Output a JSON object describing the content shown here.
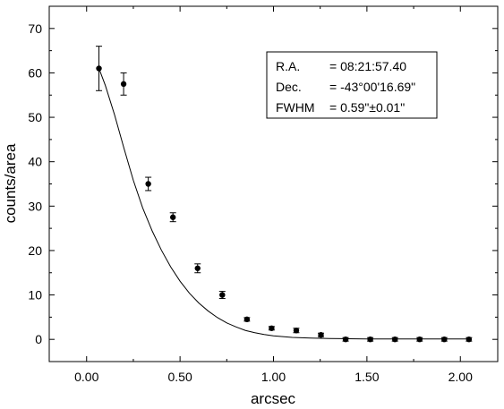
{
  "chart_data": {
    "type": "scatter",
    "title": "",
    "xlabel": "arcsec",
    "ylabel": "counts/area",
    "xlim": [
      -0.2,
      2.2
    ],
    "ylim": [
      -5,
      75
    ],
    "xticks": [
      0.0,
      0.5,
      1.0,
      1.5,
      2.0
    ],
    "xtick_labels": [
      "0.00",
      "0.50",
      "1.00",
      "1.50",
      "2.00"
    ],
    "yticks": [
      0,
      10,
      20,
      30,
      40,
      50,
      60,
      70
    ],
    "ytick_labels": [
      "0",
      "10",
      "20",
      "30",
      "40",
      "50",
      "60",
      "70"
    ],
    "grid": false,
    "legend": "none",
    "series": [
      {
        "kind": "points_with_error_bars",
        "x": [
          0.066,
          0.198,
          0.33,
          0.462,
          0.594,
          0.726,
          0.858,
          0.99,
          1.122,
          1.254,
          1.386,
          1.518,
          1.65,
          1.782,
          1.914,
          2.046
        ],
        "y": [
          61.0,
          57.5,
          35.0,
          27.5,
          16.0,
          10.0,
          4.5,
          2.5,
          2.0,
          1.0,
          0.0,
          0.0,
          0.0,
          0.0,
          0.0,
          0.0
        ],
        "yerr": [
          5.0,
          2.5,
          1.5,
          1.0,
          1.0,
          0.8,
          0.4,
          0.4,
          0.5,
          0.4,
          0.4,
          0.4,
          0.4,
          0.4,
          0.4,
          0.4
        ]
      },
      {
        "kind": "fit_curve",
        "x": [
          0.066,
          0.1,
          0.15,
          0.2,
          0.25,
          0.3,
          0.35,
          0.4,
          0.45,
          0.5,
          0.55,
          0.6,
          0.65,
          0.7,
          0.75,
          0.8,
          0.85,
          0.9,
          0.95,
          1.0,
          1.1,
          1.2,
          1.3,
          1.4,
          1.5,
          1.6,
          1.7,
          1.8,
          1.9,
          2.05
        ],
        "y": [
          61.0,
          57.2,
          50.5,
          43.0,
          35.8,
          29.6,
          24.5,
          20.1,
          16.3,
          13.1,
          10.4,
          8.2,
          6.4,
          4.9,
          3.7,
          2.8,
          2.0,
          1.5,
          1.1,
          0.8,
          0.45,
          0.3,
          0.2,
          0.15,
          0.1,
          0.1,
          0.1,
          0.1,
          0.1,
          0.1
        ]
      }
    ]
  },
  "info_box": {
    "ra_label": "R.A.",
    "ra_value": "= 08:21:57.40",
    "dec_label": "Dec.",
    "dec_value": "= -43°00'16.69\"",
    "fwhm_label": "FWHM",
    "fwhm_value": "= 0.59\"±0.01\""
  }
}
